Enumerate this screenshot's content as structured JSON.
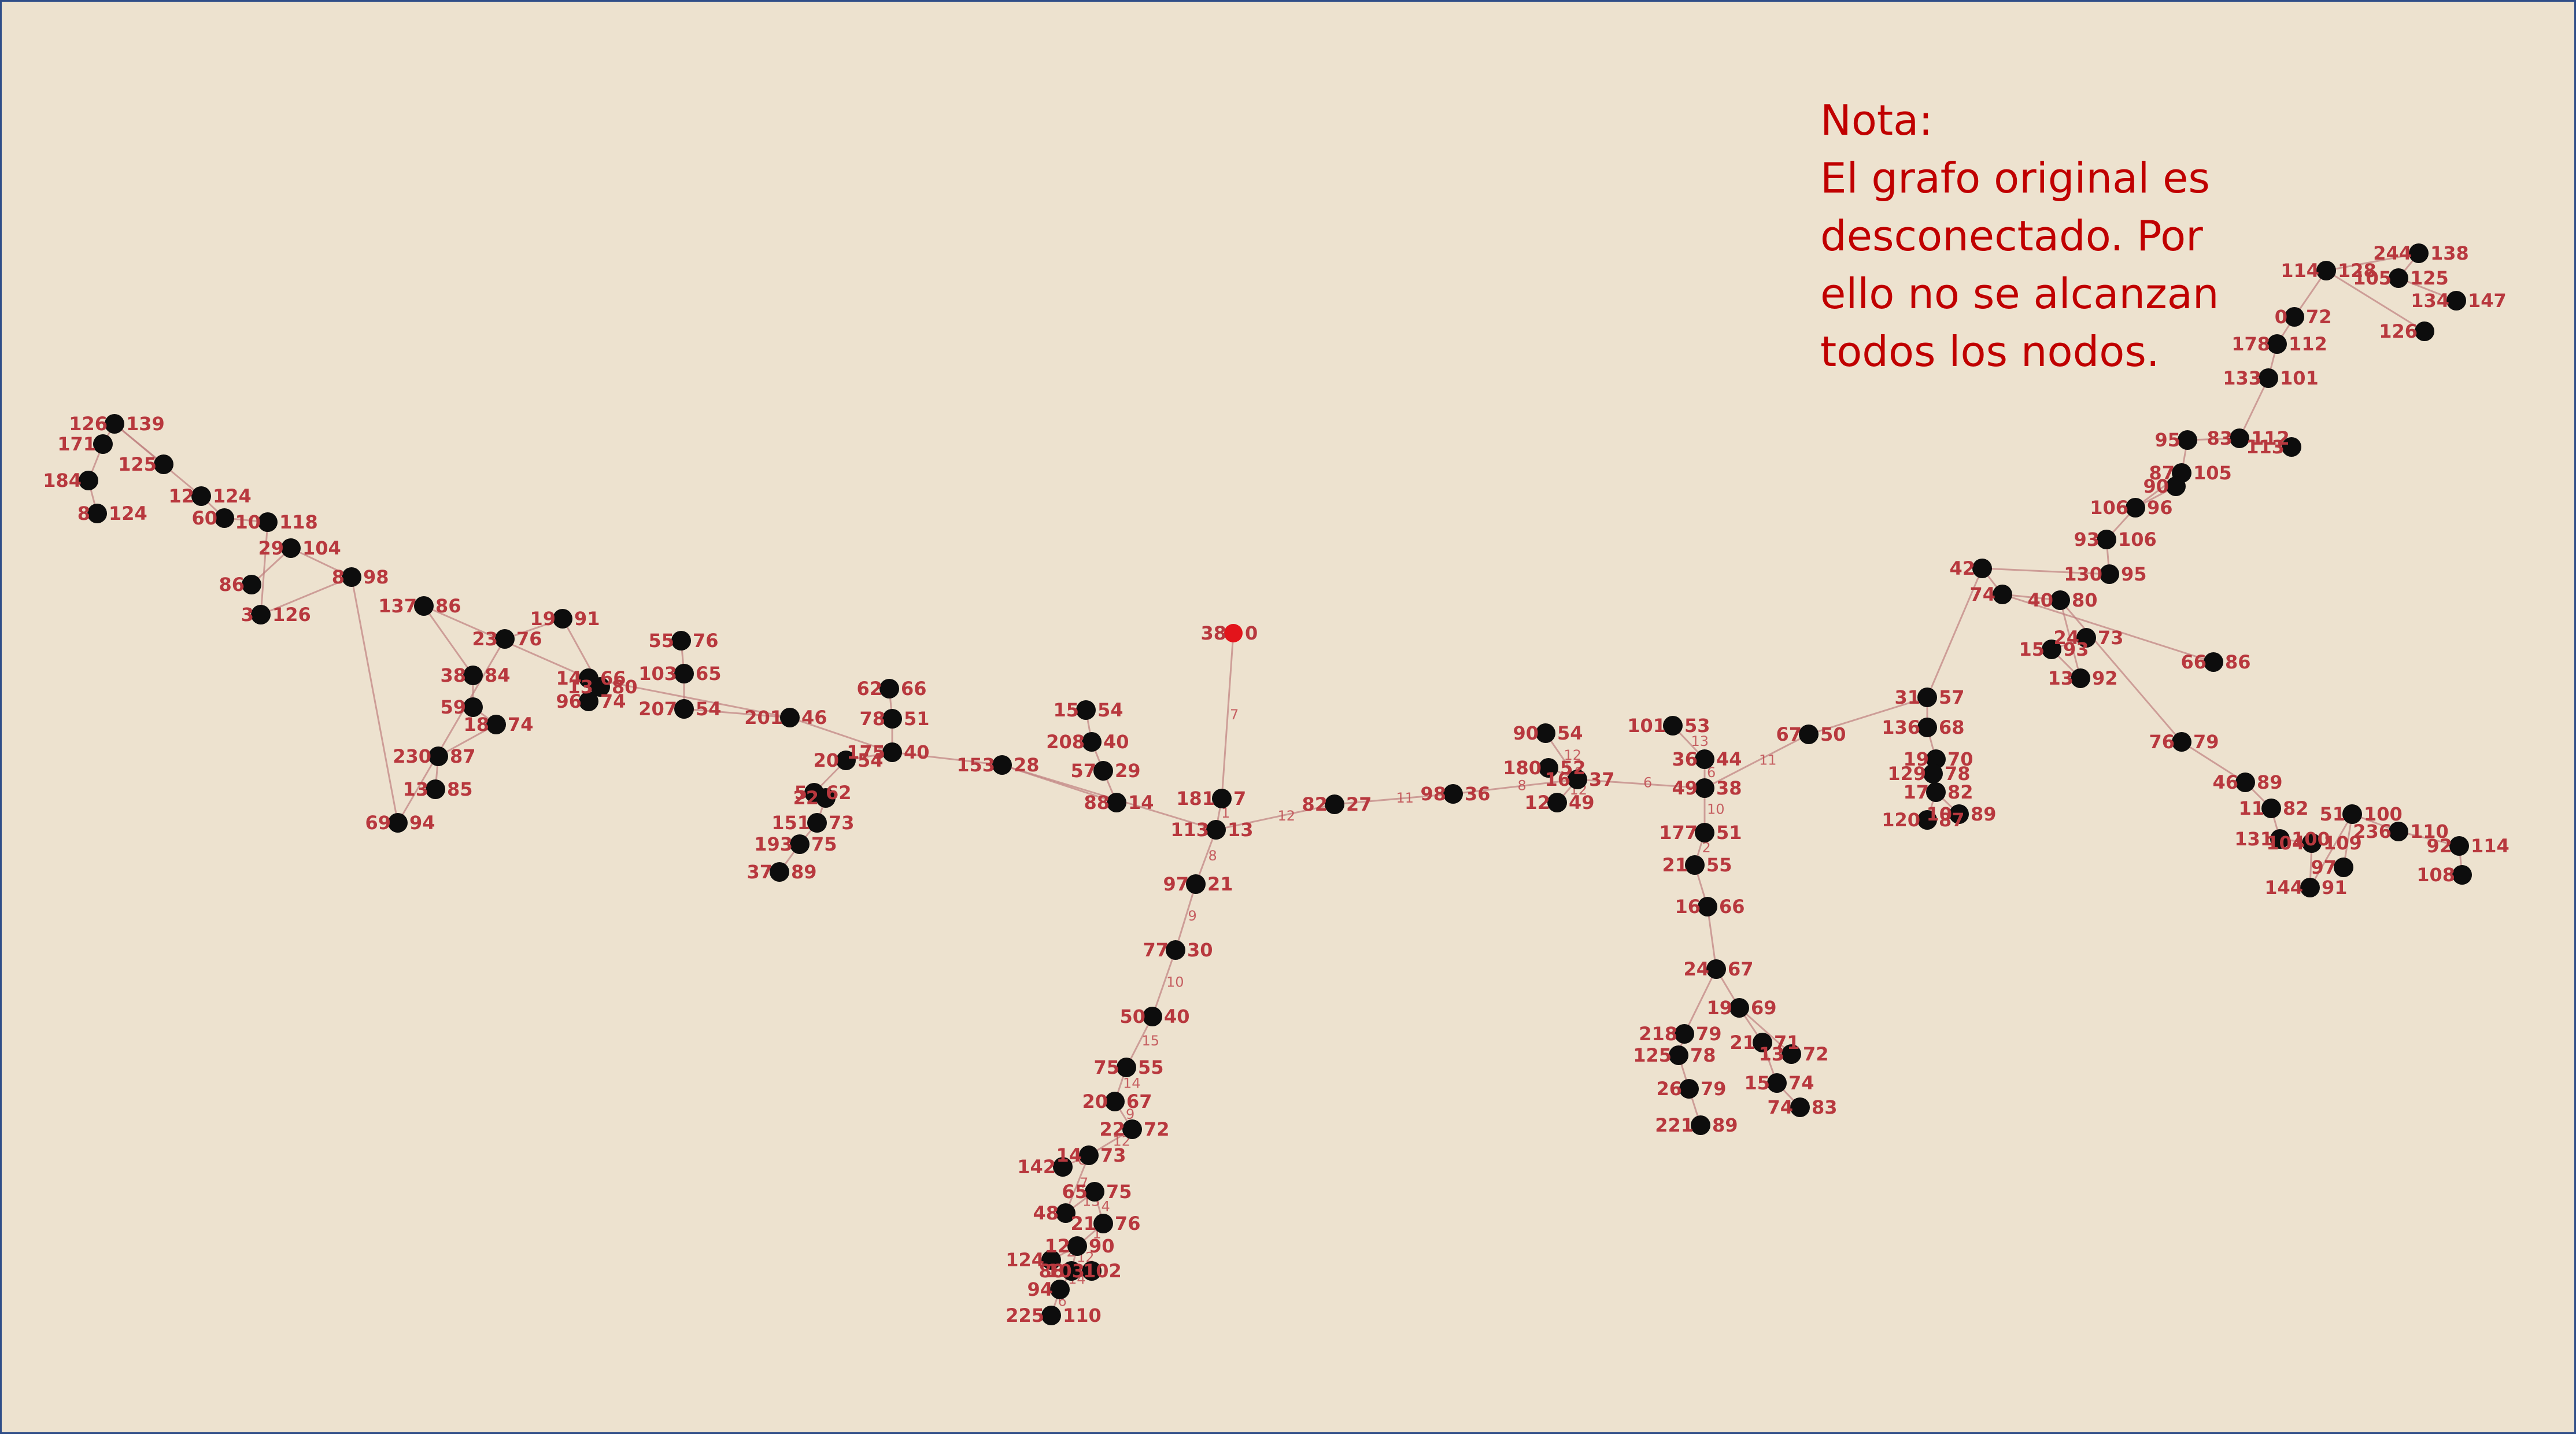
{
  "note": {
    "lines": [
      "Nota:",
      "El grafo original es",
      "desconectado. Por",
      "ello no se alcanzan",
      "todos los nodos."
    ]
  },
  "graph": {
    "root": {
      "label": "38",
      "value": "0"
    },
    "node_color": "#0d0d0d",
    "root_color": "#e3141b",
    "label_color": "#b8383e",
    "background": "#ede2cf",
    "nodes": [
      {
        "id": "38",
        "value": "0"
      },
      {
        "id": "181",
        "value": "7"
      },
      {
        "id": "113",
        "value": "13"
      },
      {
        "id": "97",
        "value": "21"
      },
      {
        "id": "77",
        "value": "30"
      },
      {
        "id": "50",
        "value": "40"
      },
      {
        "id": "75",
        "value": "55"
      },
      {
        "id": "20",
        "value": "67"
      },
      {
        "id": "22",
        "value": "72"
      },
      {
        "id": "14",
        "value": "73"
      },
      {
        "id": "65",
        "value": "75"
      },
      {
        "id": "21",
        "value": "76"
      },
      {
        "id": "12",
        "value": "90"
      },
      {
        "id": "124",
        "value": ""
      },
      {
        "id": "88",
        "value": "102"
      },
      {
        "id": "103",
        "value": ""
      },
      {
        "id": "94",
        "value": ""
      },
      {
        "id": "225",
        "value": "110"
      },
      {
        "id": "48",
        "value": ""
      },
      {
        "id": "142",
        "value": ""
      },
      {
        "id": "82",
        "value": "27"
      },
      {
        "id": "98",
        "value": "36"
      },
      {
        "id": "16",
        "value": "37"
      },
      {
        "id": "90",
        "value": "54"
      },
      {
        "id": "180",
        "value": "52"
      },
      {
        "id": "12",
        "value": "49"
      },
      {
        "id": "49",
        "value": "38"
      },
      {
        "id": "36",
        "value": "44"
      },
      {
        "id": "101",
        "value": "53"
      },
      {
        "id": "67",
        "value": "50"
      },
      {
        "id": "177",
        "value": "51"
      },
      {
        "id": "21",
        "value": "55"
      },
      {
        "id": "16",
        "value": "66"
      },
      {
        "id": "24",
        "value": "67"
      },
      {
        "id": "19",
        "value": "69"
      },
      {
        "id": "21",
        "value": "71"
      },
      {
        "id": "218",
        "value": "79"
      },
      {
        "id": "125",
        "value": "78"
      },
      {
        "id": "13",
        "value": "72"
      },
      {
        "id": "26",
        "value": "79"
      },
      {
        "id": "15",
        "value": "74"
      },
      {
        "id": "221",
        "value": "89"
      },
      {
        "id": "74",
        "value": "83"
      },
      {
        "id": "31",
        "value": "57"
      },
      {
        "id": "136",
        "value": "68"
      },
      {
        "id": "19",
        "value": "70"
      },
      {
        "id": "129",
        "value": "78"
      },
      {
        "id": "17",
        "value": "82"
      },
      {
        "id": "120",
        "value": "87"
      },
      {
        "id": "10",
        "value": "89"
      },
      {
        "id": "13",
        "value": "92"
      },
      {
        "id": "15",
        "value": "93"
      },
      {
        "id": "24",
        "value": "73"
      },
      {
        "id": "76",
        "value": "79"
      },
      {
        "id": "46",
        "value": "89"
      },
      {
        "id": "11",
        "value": "82"
      },
      {
        "id": "131",
        "value": "100"
      },
      {
        "id": "104",
        "value": "109"
      },
      {
        "id": "144",
        "value": "91"
      },
      {
        "id": "51",
        "value": "100"
      },
      {
        "id": "236",
        "value": "110"
      },
      {
        "id": "92",
        "value": "114"
      },
      {
        "id": "108",
        "value": ""
      },
      {
        "id": "97",
        "value": ""
      },
      {
        "id": "66",
        "value": "86"
      },
      {
        "id": "42",
        "value": ""
      },
      {
        "id": "74",
        "value": ""
      },
      {
        "id": "40",
        "value": "80"
      },
      {
        "id": "130",
        "value": "95"
      },
      {
        "id": "93",
        "value": "106"
      },
      {
        "id": "106",
        "value": "96"
      },
      {
        "id": "87",
        "value": "105"
      },
      {
        "id": "95",
        "value": ""
      },
      {
        "id": "83",
        "value": "112"
      },
      {
        "id": "113",
        "value": ""
      },
      {
        "id": "90",
        "value": ""
      },
      {
        "id": "133",
        "value": "101"
      },
      {
        "id": "178",
        "value": "112"
      },
      {
        "id": "0",
        "value": "72"
      },
      {
        "id": "114",
        "value": "128"
      },
      {
        "id": "244",
        "value": "138"
      },
      {
        "id": "105",
        "value": "125"
      },
      {
        "id": "134",
        "value": "147"
      },
      {
        "id": "126",
        "value": ""
      },
      {
        "id": "153",
        "value": "28"
      },
      {
        "id": "88",
        "value": "14"
      },
      {
        "id": "57",
        "value": "29"
      },
      {
        "id": "208",
        "value": "40"
      },
      {
        "id": "15",
        "value": "54"
      },
      {
        "id": "175",
        "value": "40"
      },
      {
        "id": "78",
        "value": "51"
      },
      {
        "id": "62",
        "value": "66"
      },
      {
        "id": "20",
        "value": "54"
      },
      {
        "id": "5",
        "value": "62"
      },
      {
        "id": "22",
        "value": ""
      },
      {
        "id": "151",
        "value": "73"
      },
      {
        "id": "193",
        "value": "75"
      },
      {
        "id": "37",
        "value": "89"
      },
      {
        "id": "201",
        "value": "46"
      },
      {
        "id": "207",
        "value": "54"
      },
      {
        "id": "103",
        "value": "65"
      },
      {
        "id": "55",
        "value": "76"
      },
      {
        "id": "14",
        "value": "66"
      },
      {
        "id": "96",
        "value": "74"
      },
      {
        "id": "13",
        "value": "80"
      },
      {
        "id": "19",
        "value": "91"
      },
      {
        "id": "23",
        "value": "76"
      },
      {
        "id": "137",
        "value": "86"
      },
      {
        "id": "38",
        "value": "84"
      },
      {
        "id": "59",
        "value": ""
      },
      {
        "id": "18",
        "value": "74"
      },
      {
        "id": "230",
        "value": "87"
      },
      {
        "id": "13",
        "value": "85"
      },
      {
        "id": "69",
        "value": "94"
      },
      {
        "id": "8",
        "value": "98"
      },
      {
        "id": "29",
        "value": "104"
      },
      {
        "id": "86",
        "value": ""
      },
      {
        "id": "3",
        "value": "126"
      },
      {
        "id": "10",
        "value": "118"
      },
      {
        "id": "60",
        "value": ""
      },
      {
        "id": "12",
        "value": "124"
      },
      {
        "id": "126",
        "value": "139"
      },
      {
        "id": "171",
        "value": ""
      },
      {
        "id": "184",
        "value": ""
      },
      {
        "id": "8",
        "value": "124"
      },
      {
        "id": "125",
        "value": ""
      }
    ],
    "edge_weights": [
      "7",
      "1",
      "8",
      "9",
      "10",
      "15",
      "14",
      "9",
      "12",
      "7",
      "8",
      "13",
      "4",
      "1",
      "2",
      "12",
      "11",
      "14",
      "6",
      "12",
      "11",
      "8",
      "12",
      "10",
      "12",
      "6",
      "6",
      "13",
      "11",
      "10",
      "2"
    ]
  }
}
